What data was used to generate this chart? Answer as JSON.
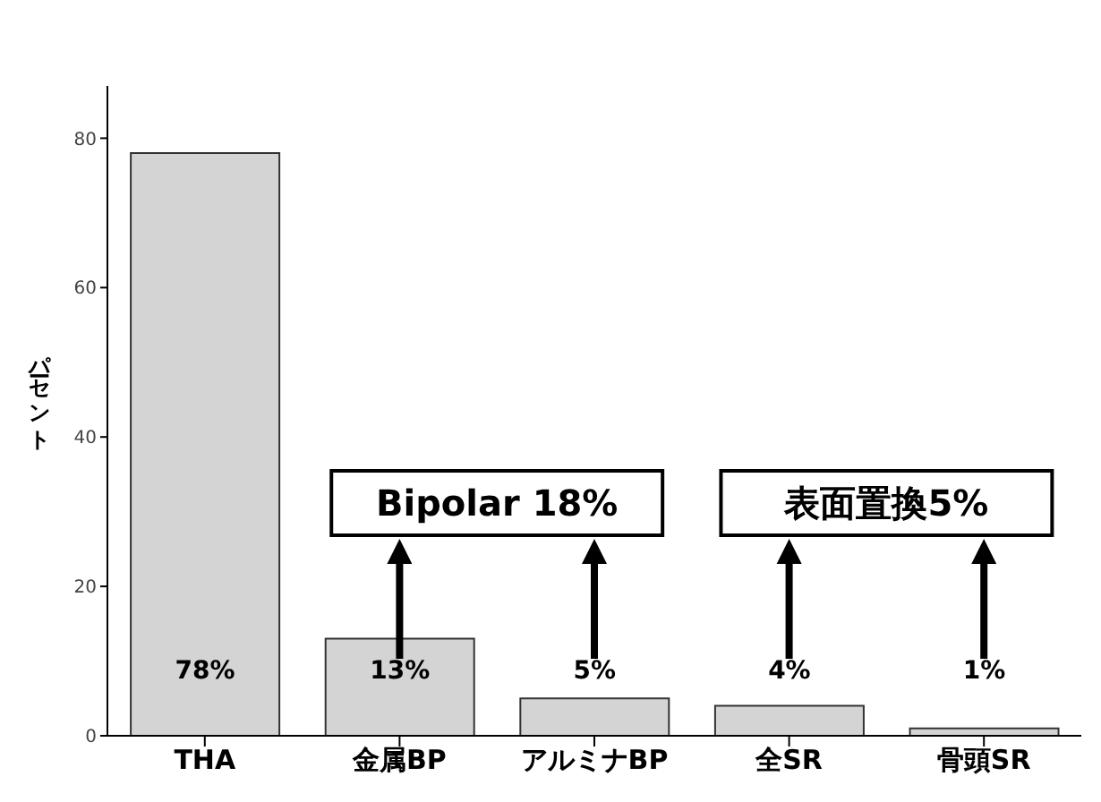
{
  "chart_data": {
    "type": "bar",
    "ylabel": "パーセント",
    "categories": [
      "THA",
      "金属BP",
      "アルミナBP",
      "全SR",
      "骨頭SR"
    ],
    "values": [
      78,
      13,
      5,
      4,
      1
    ],
    "value_labels": [
      "78%",
      "13%",
      "5%",
      "4%",
      "1%"
    ],
    "color": "#d4d4d4",
    "ylim": [
      0,
      87
    ],
    "yticks": [
      0,
      20,
      40,
      60,
      80
    ],
    "annotations": [
      "Bipolar 18%",
      "表面置換5%"
    ]
  }
}
